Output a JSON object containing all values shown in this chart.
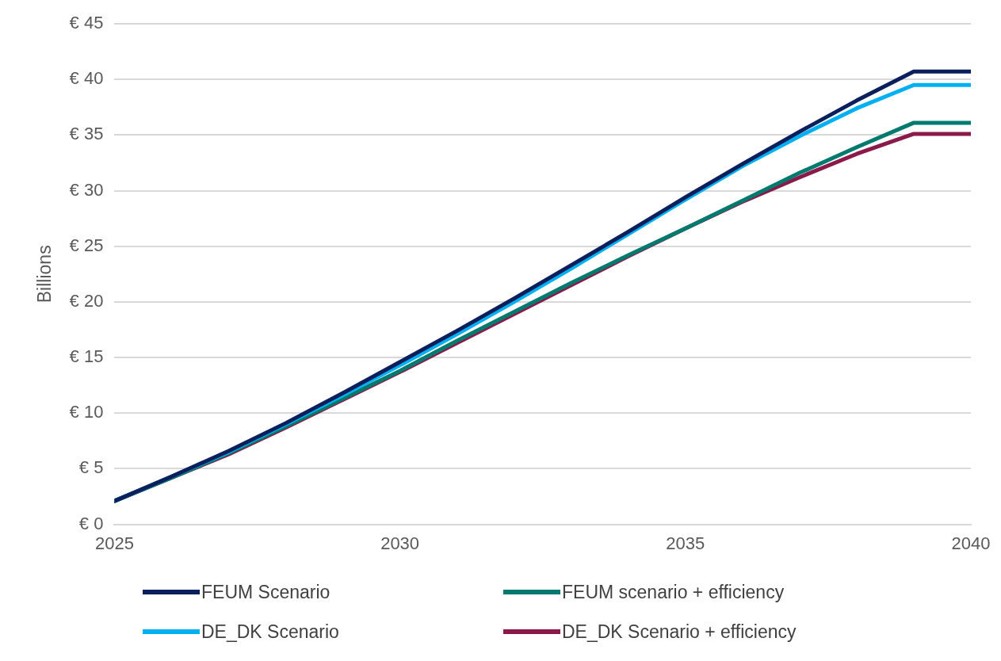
{
  "chart_data": {
    "type": "line",
    "ylabel": "Billions",
    "x": [
      2025,
      2026,
      2027,
      2028,
      2029,
      2030,
      2031,
      2032,
      2033,
      2034,
      2035,
      2036,
      2037,
      2038,
      2039,
      2040
    ],
    "xlim": [
      2025,
      2040
    ],
    "xticks": [
      2025,
      2030,
      2035,
      2040
    ],
    "ylim": [
      0,
      45
    ],
    "yticks": [
      {
        "value": 0,
        "label": "€ 0"
      },
      {
        "value": 5,
        "label": "€ 5"
      },
      {
        "value": 10,
        "label": "€ 10"
      },
      {
        "value": 15,
        "label": "€ 15"
      },
      {
        "value": 20,
        "label": "€ 20"
      },
      {
        "value": 25,
        "label": "€ 25"
      },
      {
        "value": 30,
        "label": "€ 30"
      },
      {
        "value": 35,
        "label": "€ 35"
      },
      {
        "value": 40,
        "label": "€ 40"
      },
      {
        "value": 45,
        "label": "€ 45"
      }
    ],
    "grid": "y",
    "legend": "bottom",
    "marker": "none",
    "line_style": "solid",
    "series": [
      {
        "name": "FEUM Scenario",
        "color": "#0a1f5c",
        "values": [
          2.1,
          4.3,
          6.6,
          9.1,
          11.8,
          14.6,
          17.4,
          20.3,
          23.3,
          26.3,
          29.4,
          32.4,
          35.3,
          38.1,
          40.7,
          40.7
        ]
      },
      {
        "name": "DE_DK Scenario",
        "color": "#00b0f0",
        "values": [
          2.1,
          4.3,
          6.5,
          9.0,
          11.6,
          14.3,
          17.1,
          20.0,
          23.0,
          26.1,
          29.2,
          32.2,
          34.9,
          37.4,
          39.5,
          39.5
        ]
      },
      {
        "name": "FEUM scenario + efficiency",
        "color": "#007a6e",
        "values": [
          2.1,
          4.2,
          6.4,
          8.8,
          11.3,
          13.8,
          16.5,
          19.1,
          21.7,
          24.2,
          26.6,
          29.1,
          31.6,
          33.9,
          36.1,
          36.1
        ]
      },
      {
        "name": "DE_DK Scenario + efficiency",
        "color": "#8b1a4a",
        "values": [
          2.1,
          4.2,
          6.3,
          8.7,
          11.2,
          13.7,
          16.3,
          18.9,
          21.5,
          24.1,
          26.6,
          29.0,
          31.2,
          33.3,
          35.1,
          35.1
        ]
      }
    ]
  }
}
